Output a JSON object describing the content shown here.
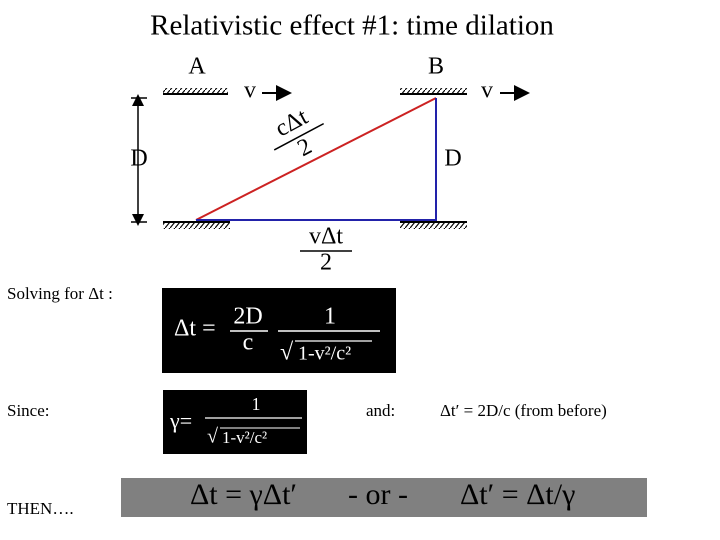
{
  "title": "Relativistic effect #1: time dilation",
  "diagram": {
    "label_a": "A",
    "label_b": "B",
    "v_left": "v",
    "v_right": "v",
    "d_left": "D",
    "d_right": "D",
    "c_dt_num": "cΔt",
    "c_dt_den": "2",
    "v_dt_num": "vΔt",
    "v_dt_den": "2"
  },
  "solving": {
    "label": "Solving for Δt :",
    "lhs": "Δt =",
    "num1": "2D",
    "den1": "c",
    "num2": "1",
    "root": "√",
    "radicand": "1-v²/c²"
  },
  "since": {
    "label": "Since:",
    "lhs": "γ=",
    "num": "1",
    "root": "√",
    "radicand": "1-v²/c²",
    "and": "and:",
    "before": "Δt′ = 2D/c (from before)"
  },
  "then": {
    "label": "THEN….",
    "eq1": "Δt = γΔt′",
    "or": "- or -",
    "eq2": "Δt′ = Δt/γ"
  }
}
